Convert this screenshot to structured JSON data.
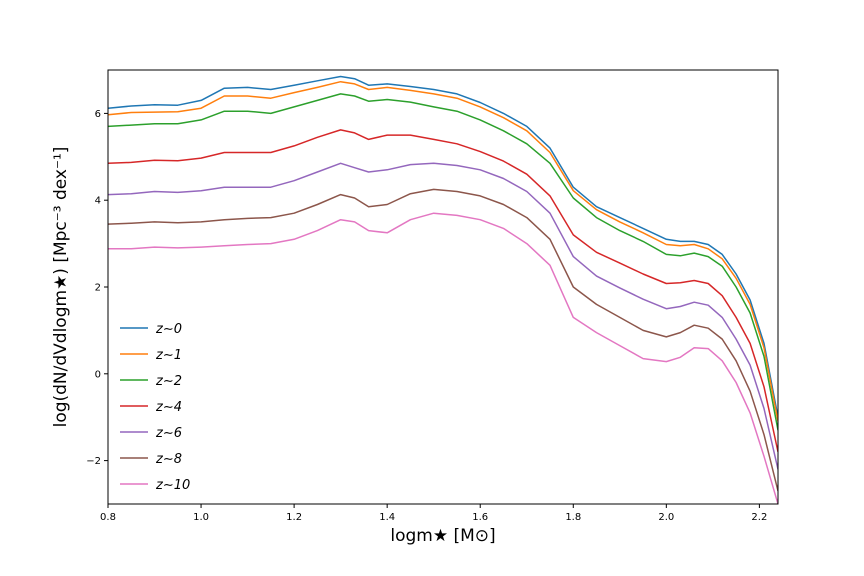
{
  "chart_data": {
    "type": "line",
    "title": "",
    "xlabel": "logm★ [M⊙]",
    "ylabel": "log(dN/dVdlogm★) [Mpc⁻³ dex⁻¹]",
    "xlim": [
      0.8,
      2.24
    ],
    "ylim": [
      -3.0,
      7.0
    ],
    "x_ticks": [
      0.8,
      1.0,
      1.2,
      1.4,
      1.6,
      1.8,
      2.0,
      2.2
    ],
    "x_tick_labels": [
      "0.8",
      "1.0",
      "1.2",
      "1.4",
      "1.6",
      "1.8",
      "2.0",
      "2.2"
    ],
    "y_ticks": [
      -2,
      0,
      2,
      4,
      6
    ],
    "y_tick_labels": [
      "−2",
      "0",
      "2",
      "4",
      "6"
    ],
    "grid": false,
    "legend_position": "lower-left",
    "x": [
      0.8,
      0.85,
      0.9,
      0.95,
      1.0,
      1.05,
      1.1,
      1.15,
      1.2,
      1.25,
      1.3,
      1.33,
      1.36,
      1.4,
      1.45,
      1.5,
      1.55,
      1.6,
      1.65,
      1.7,
      1.75,
      1.8,
      1.85,
      1.9,
      1.95,
      2.0,
      2.03,
      2.06,
      2.09,
      2.12,
      2.15,
      2.18,
      2.21,
      2.24
    ],
    "series": [
      {
        "name": "z∼0",
        "color": "#1f77b4",
        "values": [
          6.12,
          6.17,
          6.2,
          6.19,
          6.3,
          6.58,
          6.6,
          6.55,
          6.65,
          6.75,
          6.85,
          6.8,
          6.65,
          6.68,
          6.62,
          6.55,
          6.45,
          6.25,
          6.0,
          5.7,
          5.2,
          4.3,
          3.85,
          3.6,
          3.35,
          3.1,
          3.05,
          3.05,
          2.98,
          2.75,
          2.3,
          1.7,
          0.7,
          -1.0
        ]
      },
      {
        "name": "z∼1",
        "color": "#ff7f0e",
        "values": [
          5.97,
          6.02,
          6.03,
          6.04,
          6.12,
          6.4,
          6.4,
          6.35,
          6.48,
          6.6,
          6.73,
          6.68,
          6.55,
          6.6,
          6.53,
          6.45,
          6.35,
          6.15,
          5.9,
          5.6,
          5.1,
          4.22,
          3.78,
          3.5,
          3.25,
          2.98,
          2.95,
          2.98,
          2.88,
          2.65,
          2.2,
          1.6,
          0.6,
          -1.1
        ]
      },
      {
        "name": "z∼2",
        "color": "#2ca02c",
        "values": [
          5.7,
          5.73,
          5.76,
          5.76,
          5.85,
          6.05,
          6.05,
          6.0,
          6.15,
          6.3,
          6.45,
          6.4,
          6.28,
          6.32,
          6.26,
          6.15,
          6.05,
          5.85,
          5.6,
          5.3,
          4.85,
          4.05,
          3.6,
          3.3,
          3.05,
          2.75,
          2.72,
          2.78,
          2.7,
          2.48,
          2.0,
          1.4,
          0.4,
          -1.3
        ]
      },
      {
        "name": "z∼4",
        "color": "#d62728",
        "values": [
          4.85,
          4.87,
          4.92,
          4.91,
          4.97,
          5.1,
          5.1,
          5.1,
          5.25,
          5.45,
          5.62,
          5.55,
          5.4,
          5.5,
          5.5,
          5.4,
          5.3,
          5.12,
          4.9,
          4.6,
          4.1,
          3.2,
          2.8,
          2.55,
          2.3,
          2.08,
          2.1,
          2.15,
          2.08,
          1.8,
          1.3,
          0.7,
          -0.3,
          -1.8
        ]
      },
      {
        "name": "z∼6",
        "color": "#9467bd",
        "values": [
          4.13,
          4.15,
          4.2,
          4.18,
          4.22,
          4.3,
          4.3,
          4.3,
          4.45,
          4.65,
          4.85,
          4.75,
          4.65,
          4.7,
          4.82,
          4.85,
          4.8,
          4.7,
          4.5,
          4.2,
          3.7,
          2.7,
          2.25,
          1.98,
          1.72,
          1.5,
          1.55,
          1.65,
          1.58,
          1.3,
          0.8,
          0.2,
          -0.8,
          -2.2
        ]
      },
      {
        "name": "z∼8",
        "color": "#8c564b",
        "values": [
          3.45,
          3.47,
          3.5,
          3.48,
          3.5,
          3.55,
          3.58,
          3.6,
          3.7,
          3.9,
          4.13,
          4.05,
          3.85,
          3.9,
          4.15,
          4.25,
          4.2,
          4.1,
          3.9,
          3.6,
          3.1,
          2.0,
          1.6,
          1.3,
          1.0,
          0.85,
          0.95,
          1.12,
          1.05,
          0.8,
          0.3,
          -0.4,
          -1.4,
          -2.7
        ]
      },
      {
        "name": "z∼10",
        "color": "#e377c2",
        "values": [
          2.88,
          2.88,
          2.92,
          2.9,
          2.92,
          2.95,
          2.98,
          3.0,
          3.1,
          3.3,
          3.55,
          3.5,
          3.3,
          3.25,
          3.55,
          3.7,
          3.65,
          3.55,
          3.35,
          3.0,
          2.5,
          1.3,
          0.95,
          0.65,
          0.35,
          0.28,
          0.38,
          0.6,
          0.58,
          0.3,
          -0.2,
          -0.9,
          -1.9,
          -3.0
        ]
      }
    ]
  }
}
